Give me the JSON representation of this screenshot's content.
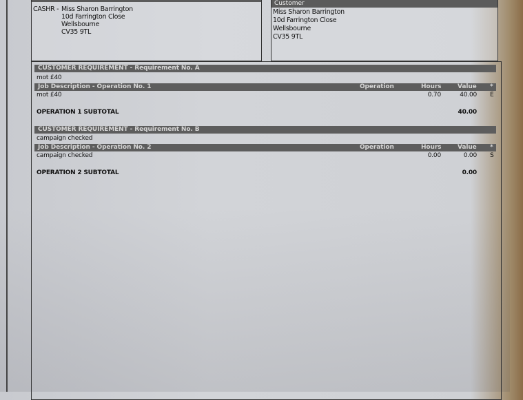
{
  "cashier": {
    "prefix": "CASHR -",
    "name": "Miss Sharon Barrington",
    "line1": "10d Farrington Close",
    "line2": "Wellsbourne",
    "postcode": "CV35 9TL"
  },
  "customer": {
    "header": "Customer",
    "name": "Miss Sharon Barrington",
    "line1": "10d Farrington Close",
    "line2": "Wellsbourne",
    "postcode": "CV35 9TL"
  },
  "columns": {
    "operation": "Operation",
    "hours": "Hours",
    "value": "Value",
    "flag": "*"
  },
  "requirements": [
    {
      "header": "CUSTOMER REQUIREMENT - Requirement No. A",
      "text": "mot £40",
      "job_header": "Job Description - Operation No. 1",
      "line": {
        "description": "mot £40",
        "hours": "0.70",
        "value": "40.00",
        "flag": "E"
      },
      "subtotal_label": "OPERATION 1 SUBTOTAL",
      "subtotal": "40.00"
    },
    {
      "header": "CUSTOMER REQUIREMENT - Requirement No. B",
      "text": "campaign checked",
      "job_header": "Job Description - Operation No. 2",
      "line": {
        "description": "campaign checked",
        "hours": "0.00",
        "value": "0.00",
        "flag": "S"
      },
      "subtotal_label": "OPERATION 2 SUBTOTAL",
      "subtotal": "0.00"
    }
  ]
}
